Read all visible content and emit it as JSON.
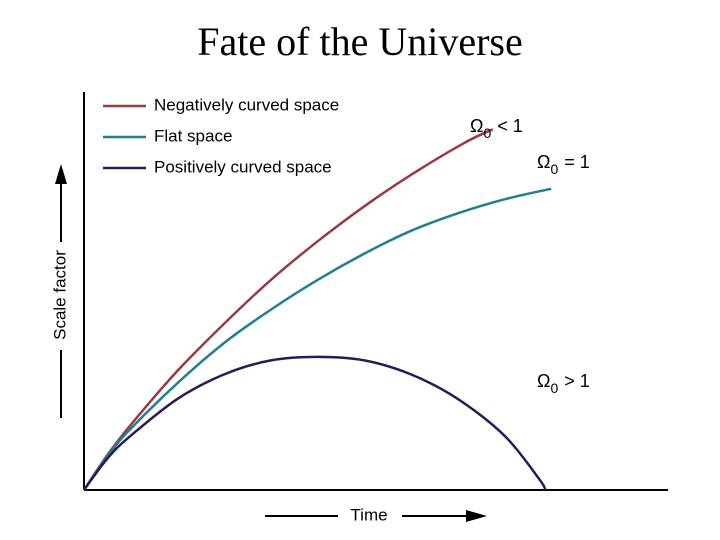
{
  "slide": {
    "title": "Fate of the Universe"
  },
  "chart_data": {
    "type": "line",
    "title": "Fate of the Universe",
    "xlabel": "Time",
    "ylabel": "Scale factor",
    "ticks": false,
    "grid": false,
    "legend_position": "top-left",
    "series": [
      {
        "name": "Negatively curved space",
        "color": "#9b3a3e",
        "annotation": {
          "symbol": "Ω",
          "subscript": "0",
          "relation": "< 1"
        },
        "points": [
          [
            0,
            0
          ],
          [
            0.04,
            0.1
          ],
          [
            0.08,
            0.186
          ],
          [
            0.16,
            0.34
          ],
          [
            0.24,
            0.475
          ],
          [
            0.32,
            0.6
          ],
          [
            0.4,
            0.71
          ],
          [
            0.48,
            0.81
          ],
          [
            0.56,
            0.9
          ],
          [
            0.65,
            0.99
          ],
          [
            0.7,
            1.03
          ]
        ]
      },
      {
        "name": "Flat space",
        "color": "#1e7f8f",
        "annotation": {
          "symbol": "Ω",
          "subscript": "0",
          "relation": "= 1"
        },
        "points": [
          [
            0,
            0
          ],
          [
            0.04,
            0.097
          ],
          [
            0.08,
            0.175
          ],
          [
            0.16,
            0.305
          ],
          [
            0.24,
            0.42
          ],
          [
            0.32,
            0.515
          ],
          [
            0.4,
            0.6
          ],
          [
            0.48,
            0.675
          ],
          [
            0.56,
            0.74
          ],
          [
            0.64,
            0.79
          ],
          [
            0.72,
            0.83
          ],
          [
            0.8,
            0.86
          ]
        ]
      },
      {
        "name": "Positively curved space",
        "color": "#2b1a57",
        "annotation": {
          "symbol": "Ω",
          "subscript": "0",
          "relation": "> 1"
        },
        "points": [
          [
            0,
            0
          ],
          [
            0.04,
            0.09
          ],
          [
            0.08,
            0.155
          ],
          [
            0.16,
            0.26
          ],
          [
            0.24,
            0.33
          ],
          [
            0.32,
            0.37
          ],
          [
            0.4,
            0.38
          ],
          [
            0.48,
            0.37
          ],
          [
            0.56,
            0.33
          ],
          [
            0.64,
            0.26
          ],
          [
            0.72,
            0.155
          ],
          [
            0.78,
            0.03
          ],
          [
            0.79,
            0
          ]
        ]
      }
    ]
  }
}
